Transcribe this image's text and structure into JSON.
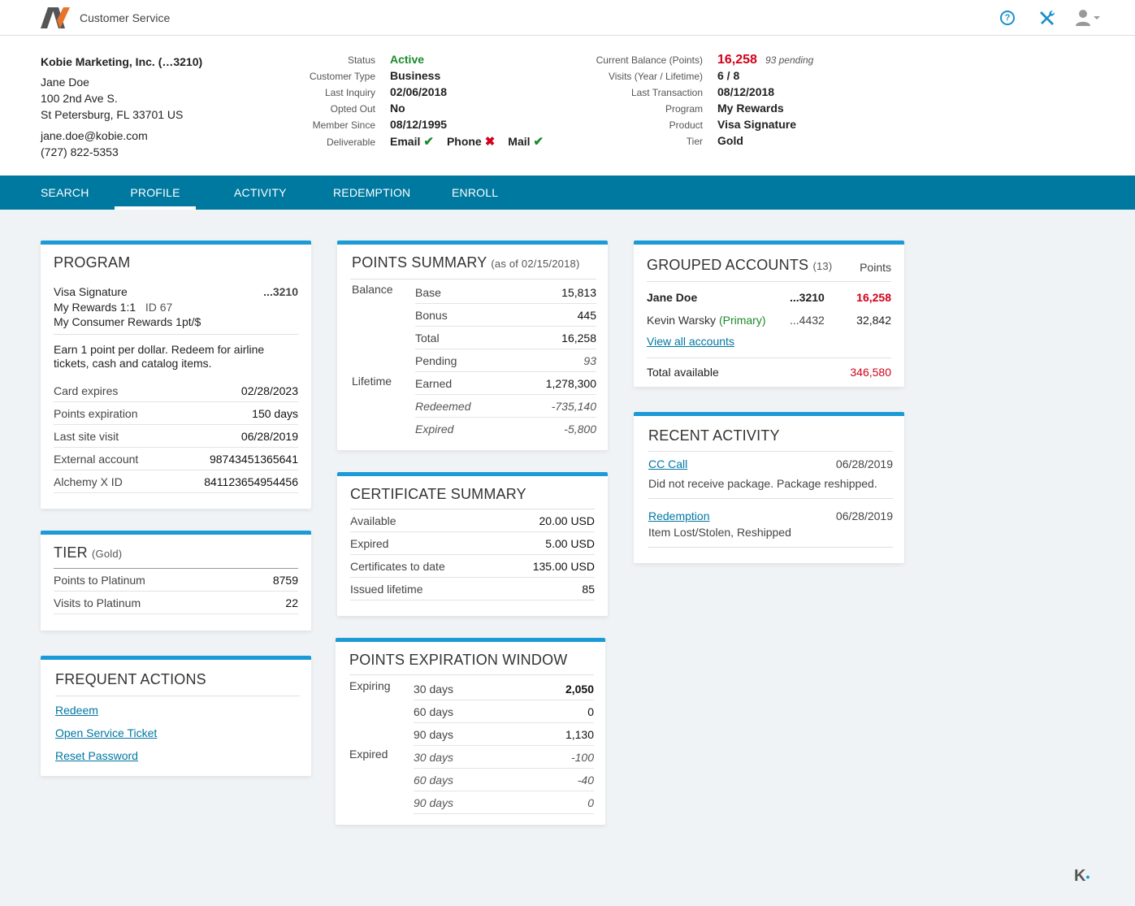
{
  "app": {
    "title": "Customer Service"
  },
  "customer": {
    "company": "Kobie Marketing, Inc. (…3210)",
    "name": "Jane Doe",
    "address1": "100 2nd Ave S.",
    "address2": "St Petersburg, FL 33701 US",
    "email": "jane.doe@kobie.com",
    "phone": "(727) 822-5353"
  },
  "status_block": {
    "status_label": "Status",
    "status": "Active",
    "type_label": "Customer Type",
    "type": "Business",
    "inquiry_label": "Last Inquiry",
    "inquiry": "02/06/2018",
    "opted_label": "Opted Out",
    "opted": "No",
    "since_label": "Member Since",
    "since": "08/12/1995",
    "deliv_label": "Deliverable",
    "deliverable": [
      {
        "label": "Email",
        "ok": true
      },
      {
        "label": "Phone",
        "ok": false
      },
      {
        "label": "Mail",
        "ok": true
      }
    ]
  },
  "balance_block": {
    "balance_label": "Current Balance (Points)",
    "balance": "16,258",
    "pending": "93 pending",
    "visits_label": "Visits (Year / Lifetime)",
    "visits": "6 / 8",
    "lasttx_label": "Last Transaction",
    "lasttx": "08/12/2018",
    "program_label": "Program",
    "program": "My Rewards",
    "product_label": "Product",
    "product": "Visa Signature",
    "tier_label": "Tier",
    "tier": "Gold"
  },
  "nav": {
    "search": "SEARCH",
    "profile": "PROFILE",
    "activity": "ACTIVITY",
    "redemption": "REDEMPTION",
    "enroll": "ENROLL"
  },
  "program_card": {
    "title": "PROGRAM",
    "card_name": "Visa Signature",
    "card_num": "...3210",
    "plan": "My Rewards 1:1",
    "plan_id": "ID 67",
    "plan_desc": "My Consumer Rewards 1pt/$",
    "description": "Earn 1 point per dollar. Redeem for airline tickets, cash and catalog items.",
    "rows": [
      {
        "label": "Card expires",
        "value": "02/28/2023"
      },
      {
        "label": "Points expiration",
        "value": "150 days"
      },
      {
        "label": "Last site visit",
        "value": "06/28/2019"
      },
      {
        "label": "External account",
        "value": "98743451365641"
      },
      {
        "label": "Alchemy X ID",
        "value": "841123654954456"
      }
    ]
  },
  "tier_card": {
    "title": "TIER",
    "sub": "(Gold)",
    "rows": [
      {
        "label": "Points to Platinum",
        "value": "8759"
      },
      {
        "label": "Visits to Platinum",
        "value": "22"
      }
    ]
  },
  "actions_card": {
    "title": "FREQUENT ACTIONS",
    "links": [
      "Redeem",
      "Open Service Ticket",
      "Reset Password"
    ]
  },
  "points_card": {
    "title": "POINTS SUMMARY",
    "sub": "(as of 02/15/2018)",
    "balance_label": "Balance",
    "lifetime_label": "Lifetime",
    "rows": [
      {
        "label": "Base",
        "value": "15,813"
      },
      {
        "label": "Bonus",
        "value": "445"
      },
      {
        "label": "Total",
        "value": "16,258"
      },
      {
        "label": "Pending",
        "value": "93"
      },
      {
        "label": "Earned",
        "value": "1,278,300"
      },
      {
        "label": "Redeemed",
        "value": "-735,140"
      },
      {
        "label": "Expired",
        "value": "-5,800"
      }
    ]
  },
  "cert_card": {
    "title": "CERTIFICATE SUMMARY",
    "rows": [
      {
        "label": "Available",
        "value": "20.00 USD"
      },
      {
        "label": "Expired",
        "value": "5.00 USD"
      },
      {
        "label": "Certificates to date",
        "value": "135.00 USD"
      },
      {
        "label": "Issued lifetime",
        "value": "85"
      }
    ]
  },
  "exp_card": {
    "title": "POINTS EXPIRATION WINDOW",
    "expiring_label": "Expiring",
    "expired_label": "Expired",
    "rows": [
      {
        "label": "30 days",
        "value": "2,050"
      },
      {
        "label": "60 days",
        "value": "0"
      },
      {
        "label": "90 days",
        "value": "1,130"
      },
      {
        "label": "30 days",
        "value": "-100"
      },
      {
        "label": "60 days",
        "value": "-40"
      },
      {
        "label": "90 days",
        "value": "0"
      }
    ]
  },
  "grouped_card": {
    "title": "GROUPED ACCOUNTS",
    "count": "(13)",
    "points_header": "Points",
    "accounts": [
      {
        "name": "Jane Doe",
        "primary": "",
        "num": "...3210",
        "points": "16,258"
      },
      {
        "name": "Kevin Warsky",
        "primary": "(Primary)",
        "num": "...4432",
        "points": "32,842"
      }
    ],
    "view_all": "View all accounts",
    "total_label": "Total available",
    "total": "346,580"
  },
  "recent_card": {
    "title": "RECENT ACTIVITY",
    "items": [
      {
        "type": "CC Call",
        "date": "06/28/2019",
        "desc": "Did not receive package. Package reshipped."
      },
      {
        "type": "Redemption",
        "date": "06/28/2019",
        "desc": "Item Lost/Stolen, Reshipped"
      }
    ]
  },
  "footer_logo": "K"
}
